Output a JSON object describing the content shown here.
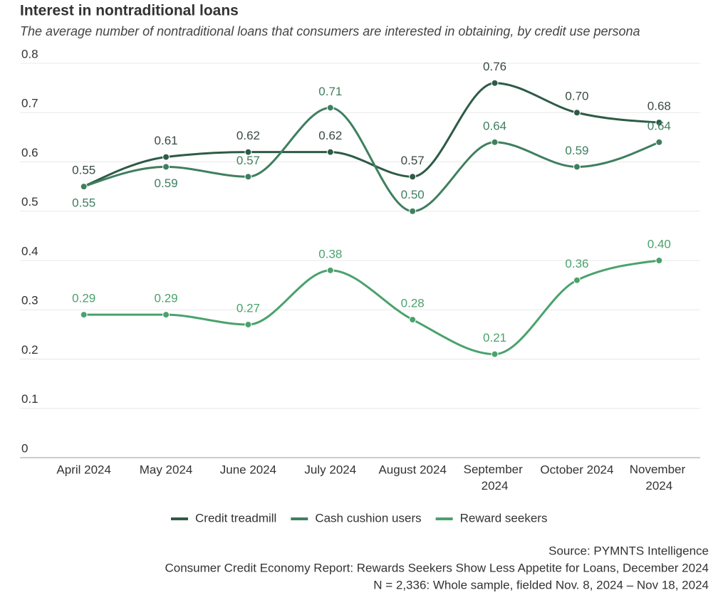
{
  "chart_data": {
    "type": "line",
    "title": "Interest in nontraditional loans",
    "subtitle": "The average number of nontraditional loans that consumers are interested in obtaining, by credit use persona",
    "categories": [
      "April 2024",
      "May 2024",
      "June 2024",
      "July 2024",
      "August 2024",
      "September 2024",
      "October 2024",
      "November 2024"
    ],
    "series": [
      {
        "name": "Credit treadmill",
        "color": "#2e5b46",
        "label_color": "#3b4a42",
        "values": [
          0.55,
          0.61,
          0.62,
          0.62,
          0.57,
          0.76,
          0.7,
          0.68
        ],
        "value_labels": [
          "0.55",
          "0.61",
          "0.62",
          "0.62",
          "0.57",
          "0.76",
          "0.70",
          "0.68"
        ]
      },
      {
        "name": "Cash cushion users",
        "color": "#3f7f5f",
        "label_color": "#3f7f5f",
        "values": [
          0.55,
          0.59,
          0.57,
          0.71,
          0.5,
          0.64,
          0.59,
          0.64
        ],
        "value_labels": [
          "0.55",
          "0.59",
          "0.57",
          "0.71",
          "0.50",
          "0.64",
          "0.59",
          "0.64"
        ]
      },
      {
        "name": "Reward seekers",
        "color": "#4aa26c",
        "label_color": "#4aa26c",
        "values": [
          0.29,
          0.29,
          0.27,
          0.38,
          0.28,
          0.21,
          0.36,
          0.4
        ],
        "value_labels": [
          "0.29",
          "0.29",
          "0.27",
          "0.38",
          "0.28",
          "0.21",
          "0.36",
          "0.40"
        ]
      }
    ],
    "ylim": [
      0,
      0.8
    ],
    "yticks": [
      0,
      0.1,
      0.2,
      0.3,
      0.4,
      0.5,
      0.6,
      0.7,
      0.8
    ],
    "grid": true,
    "legend": "bottom",
    "notes": [
      "Source: PYMNTS Intelligence",
      "Consumer Credit Economy Report: Rewards Seekers Show Less Appetite for Loans, December 2024",
      "N = 2,336: Whole sample, fielded Nov. 8, 2024 – Nov 18, 2024"
    ]
  }
}
